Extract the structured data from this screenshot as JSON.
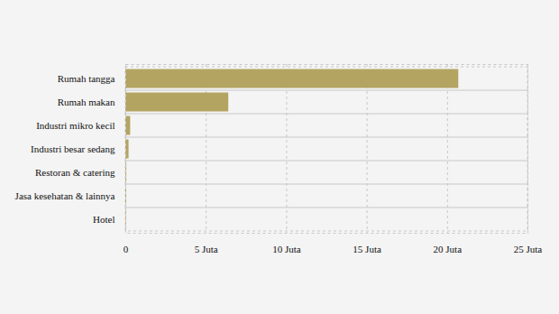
{
  "chart_data": {
    "type": "bar",
    "orientation": "horizontal",
    "categories": [
      "Rumah tangga",
      "Rumah makan",
      "Industri mikro kecil",
      "Industri besar sedang",
      "Restoran & catering",
      "Jasa kesehatan & lainnya",
      "Hotel"
    ],
    "values": [
      20.7,
      6.4,
      0.3,
      0.2,
      0.06,
      0.05,
      0.03
    ],
    "color": "#b3a462",
    "xlim": [
      0,
      25
    ],
    "xticks": [
      0,
      {
        "value": 5,
        "label": "5 Juta"
      },
      {
        "value": 10,
        "label": "10 Juta"
      },
      {
        "value": 15,
        "label": "15 Juta"
      },
      {
        "value": 20,
        "label": "20 Juta"
      },
      {
        "value": 25,
        "label": "25 Juta"
      }
    ],
    "grid": true
  }
}
